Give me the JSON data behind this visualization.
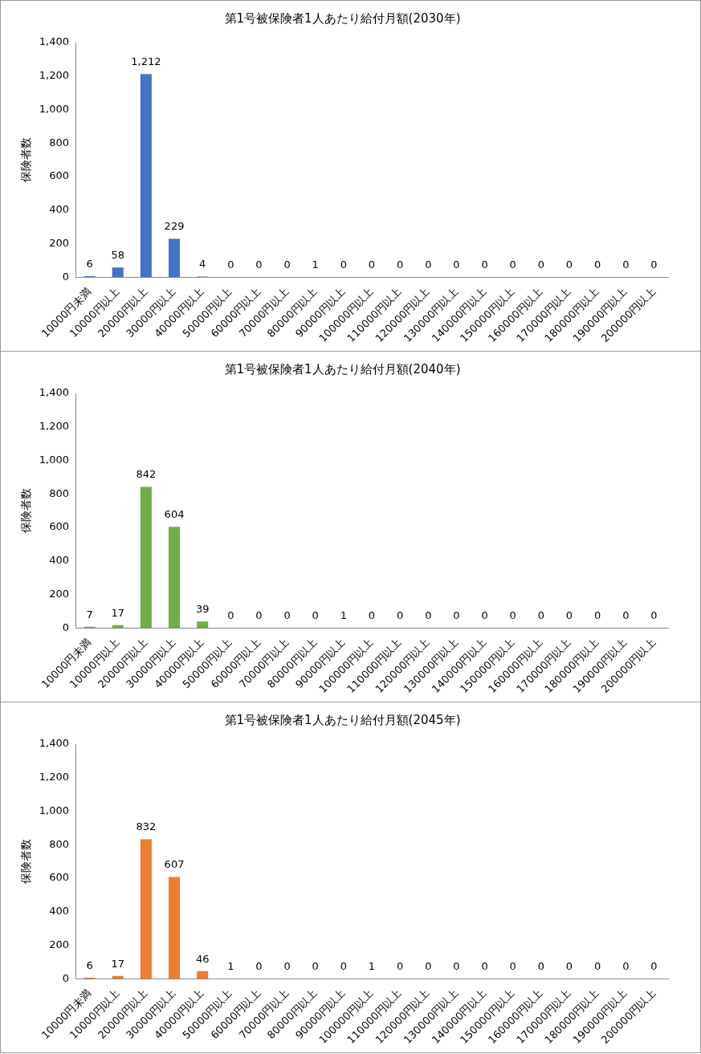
{
  "chart_data": [
    {
      "type": "bar",
      "title": "第1号被保険者1人あたり給付月額(2030年)",
      "ylabel": "保険者数",
      "categories": [
        "10000円未満",
        "10000円以上",
        "20000円以上",
        "30000円以上",
        "40000円以上",
        "50000円以上",
        "60000円以上",
        "70000円以上",
        "80000円以上",
        "90000円以上",
        "100000円以上",
        "110000円以上",
        "120000円以上",
        "130000円以上",
        "140000円以上",
        "150000円以上",
        "160000円以上",
        "170000円以上",
        "180000円以上",
        "190000円以上",
        "200000円以上"
      ],
      "values": [
        6,
        58,
        1212,
        229,
        4,
        0,
        0,
        0,
        1,
        0,
        0,
        0,
        0,
        0,
        0,
        0,
        0,
        0,
        0,
        0,
        0
      ],
      "value_labels": [
        "6",
        "58",
        "1,212",
        "229",
        "4",
        "0",
        "0",
        "0",
        "1",
        "0",
        "0",
        "0",
        "0",
        "0",
        "0",
        "0",
        "0",
        "0",
        "0",
        "0",
        "0"
      ],
      "color": "#4472c4",
      "ylim": [
        0,
        1400
      ],
      "yticks": [
        0,
        200,
        400,
        600,
        800,
        {
          "value": 1000,
          "label": "1,000"
        },
        {
          "value": 1200,
          "label": "1,200"
        },
        {
          "value": 1400,
          "label": "1,400"
        }
      ]
    },
    {
      "type": "bar",
      "title": "第1号被保険者1人あたり給付月額(2040年)",
      "ylabel": "保険者数",
      "categories": [
        "10000円未満",
        "10000円以上",
        "20000円以上",
        "30000円以上",
        "40000円以上",
        "50000円以上",
        "60000円以上",
        "70000円以上",
        "80000円以上",
        "90000円以上",
        "100000円以上",
        "110000円以上",
        "120000円以上",
        "130000円以上",
        "140000円以上",
        "150000円以上",
        "160000円以上",
        "170000円以上",
        "180000円以上",
        "190000円以上",
        "200000円以上"
      ],
      "values": [
        7,
        17,
        842,
        604,
        39,
        0,
        0,
        0,
        0,
        1,
        0,
        0,
        0,
        0,
        0,
        0,
        0,
        0,
        0,
        0,
        0
      ],
      "color": "#70ad47",
      "ylim": [
        0,
        1400
      ],
      "yticks": [
        0,
        200,
        400,
        600,
        800,
        {
          "value": 1000,
          "label": "1,000"
        },
        {
          "value": 1200,
          "label": "1,200"
        },
        {
          "value": 1400,
          "label": "1,400"
        }
      ],
      "data_labels": true
    },
    {
      "type": "bar",
      "title": "第1号被保険者1人あたり給付月額(2045年)",
      "ylabel": "保険者数",
      "categories": [
        "10000円未満",
        "10000円以上",
        "20000円以上",
        "30000円以上",
        "40000円以上",
        "50000円以上",
        "60000円以上",
        "70000円以上",
        "80000円以上",
        "90000円以上",
        "100000円以上",
        "110000円以上",
        "120000円以上",
        "130000円以上",
        "140000円以上",
        "150000円以上",
        "160000円以上",
        "170000円以上",
        "180000円以上",
        "190000円以上",
        "200000円以上"
      ],
      "values": [
        6,
        17,
        832,
        607,
        46,
        1,
        0,
        0,
        0,
        0,
        1,
        0,
        0,
        0,
        0,
        0,
        0,
        0,
        0,
        0,
        0
      ],
      "color": "#ed7d31",
      "ylim": [
        0,
        1400
      ],
      "yticks": [
        0,
        200,
        400,
        600,
        800,
        {
          "value": 1000,
          "label": "1,000"
        },
        {
          "value": 1200,
          "label": "1,200"
        },
        {
          "value": 1400,
          "label": "1,400"
        }
      ],
      "data_labels": true
    }
  ]
}
